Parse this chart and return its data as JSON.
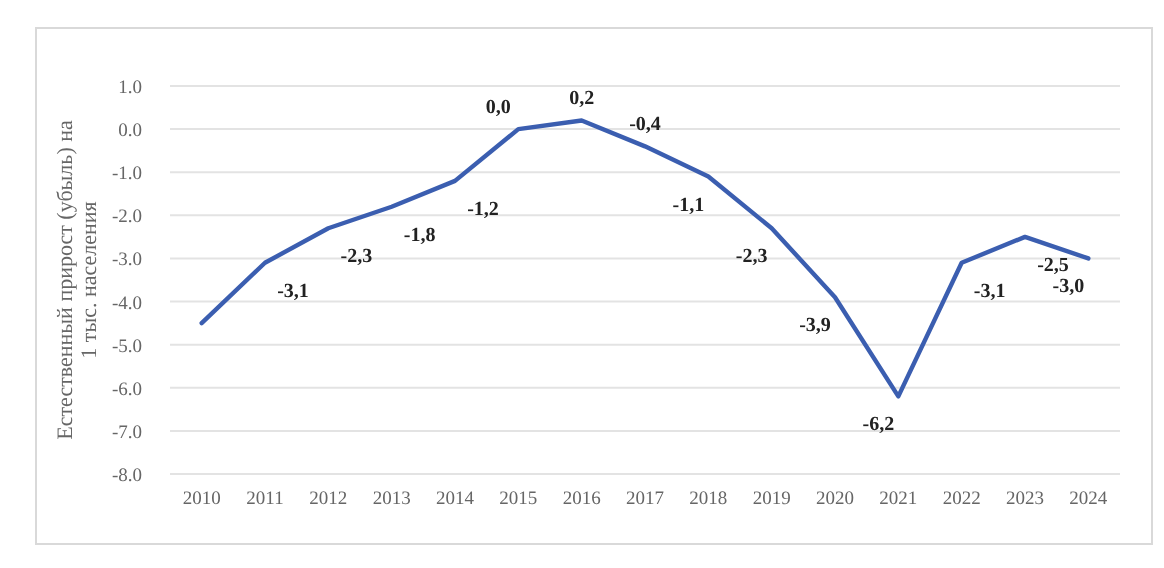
{
  "chart_data": {
    "type": "line",
    "ylabel": "Естественный прирост (убыль) на\n1 тыс. населения",
    "categories": [
      "2010",
      "2011",
      "2012",
      "2013",
      "2014",
      "2015",
      "2016",
      "2017",
      "2018",
      "2019",
      "2020",
      "2021",
      "2022",
      "2023",
      "2024"
    ],
    "series": [
      {
        "color": "#3b5eb0",
        "values": [
          -4.5,
          -3.1,
          -2.3,
          -1.8,
          -1.2,
          0.0,
          0.2,
          -0.4,
          -1.1,
          -2.3,
          -3.9,
          -6.2,
          -3.1,
          -2.5,
          -3.0
        ],
        "value_labels": [
          null,
          "-3,1",
          "-2,3",
          "-1,8",
          "-1,2",
          "0,0",
          "0,2",
          "-0,4",
          "-1,1",
          "-2,3",
          "-3,9",
          "-6,2",
          "-3,1",
          "-2,5",
          "-3,0"
        ]
      }
    ],
    "ylim": [
      -8,
      1
    ],
    "yticks": [
      {
        "value": 1,
        "label": "1.0"
      },
      {
        "value": 0,
        "label": "0.0"
      },
      {
        "value": -1,
        "label": "-1.0"
      },
      {
        "value": -2,
        "label": "-2.0"
      },
      {
        "value": -3,
        "label": "-3.0"
      },
      {
        "value": -4,
        "label": "-4.0"
      },
      {
        "value": -5,
        "label": "-5.0"
      },
      {
        "value": -6,
        "label": "-6.0"
      },
      {
        "value": -7,
        "label": "-7.0"
      },
      {
        "value": -8,
        "label": "-8.0"
      }
    ],
    "grid": "y",
    "marker": "none",
    "line_style": "solid"
  }
}
